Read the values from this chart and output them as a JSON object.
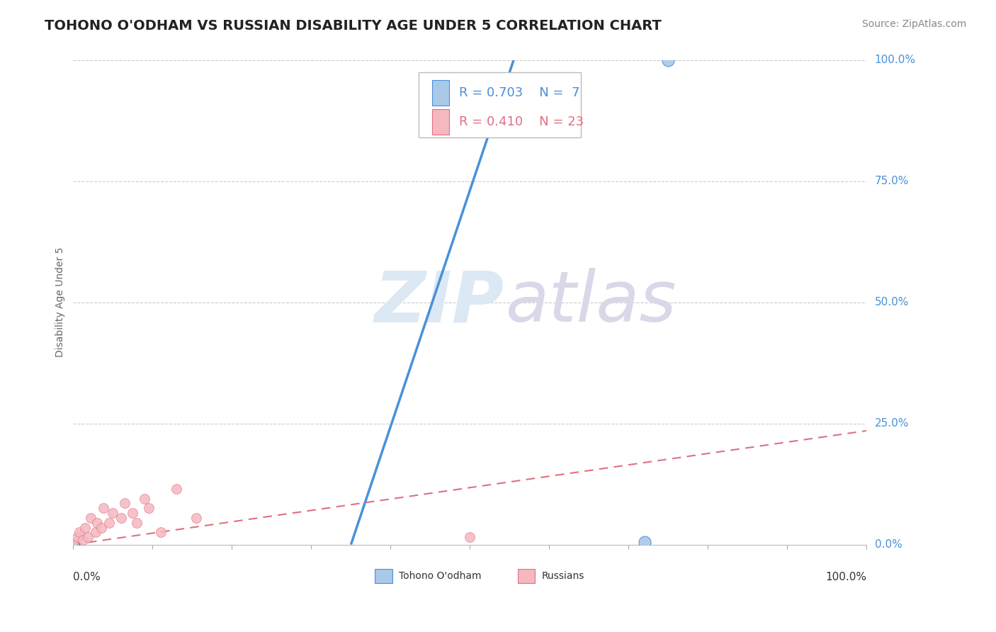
{
  "title": "TOHONO O'ODHAM VS RUSSIAN DISABILITY AGE UNDER 5 CORRELATION CHART",
  "source": "Source: ZipAtlas.com",
  "ylabel": "Disability Age Under 5",
  "xlim": [
    0.0,
    1.0
  ],
  "ylim": [
    0.0,
    1.0
  ],
  "ytick_values": [
    0.0,
    0.25,
    0.5,
    0.75,
    1.0
  ],
  "grid_color": "#cccccc",
  "background_color": "#ffffff",
  "watermark_zip": "ZIP",
  "watermark_atlas": "atlas",
  "tohono_color": "#aac8e8",
  "russian_color": "#f5b8c0",
  "tohono_line_color": "#4a90d9",
  "russian_line_color": "#e07080",
  "tohono_scatter": [
    [
      0.0,
      0.0
    ],
    [
      0.0,
      0.0
    ],
    [
      0.0,
      0.0
    ],
    [
      0.0,
      0.0
    ],
    [
      0.0,
      0.0
    ],
    [
      0.75,
      1.0
    ],
    [
      0.72,
      0.005
    ]
  ],
  "russian_scatter": [
    [
      0.0,
      0.005
    ],
    [
      0.005,
      0.015
    ],
    [
      0.008,
      0.025
    ],
    [
      0.012,
      0.01
    ],
    [
      0.015,
      0.035
    ],
    [
      0.018,
      0.015
    ],
    [
      0.022,
      0.055
    ],
    [
      0.028,
      0.025
    ],
    [
      0.03,
      0.045
    ],
    [
      0.035,
      0.035
    ],
    [
      0.038,
      0.075
    ],
    [
      0.045,
      0.045
    ],
    [
      0.05,
      0.065
    ],
    [
      0.06,
      0.055
    ],
    [
      0.065,
      0.085
    ],
    [
      0.075,
      0.065
    ],
    [
      0.08,
      0.045
    ],
    [
      0.09,
      0.095
    ],
    [
      0.095,
      0.075
    ],
    [
      0.11,
      0.025
    ],
    [
      0.13,
      0.115
    ],
    [
      0.155,
      0.055
    ],
    [
      0.5,
      0.015
    ]
  ],
  "tohono_line_x": [
    0.35,
    0.555
  ],
  "tohono_line_y": [
    0.0,
    1.0
  ],
  "russian_line_x": [
    0.0,
    1.0
  ],
  "russian_line_y": [
    0.0,
    0.235
  ],
  "title_fontsize": 14,
  "axis_label_fontsize": 10,
  "tick_fontsize": 11,
  "legend_fontsize": 13,
  "source_fontsize": 10,
  "ytick_color": "#4a90d9"
}
